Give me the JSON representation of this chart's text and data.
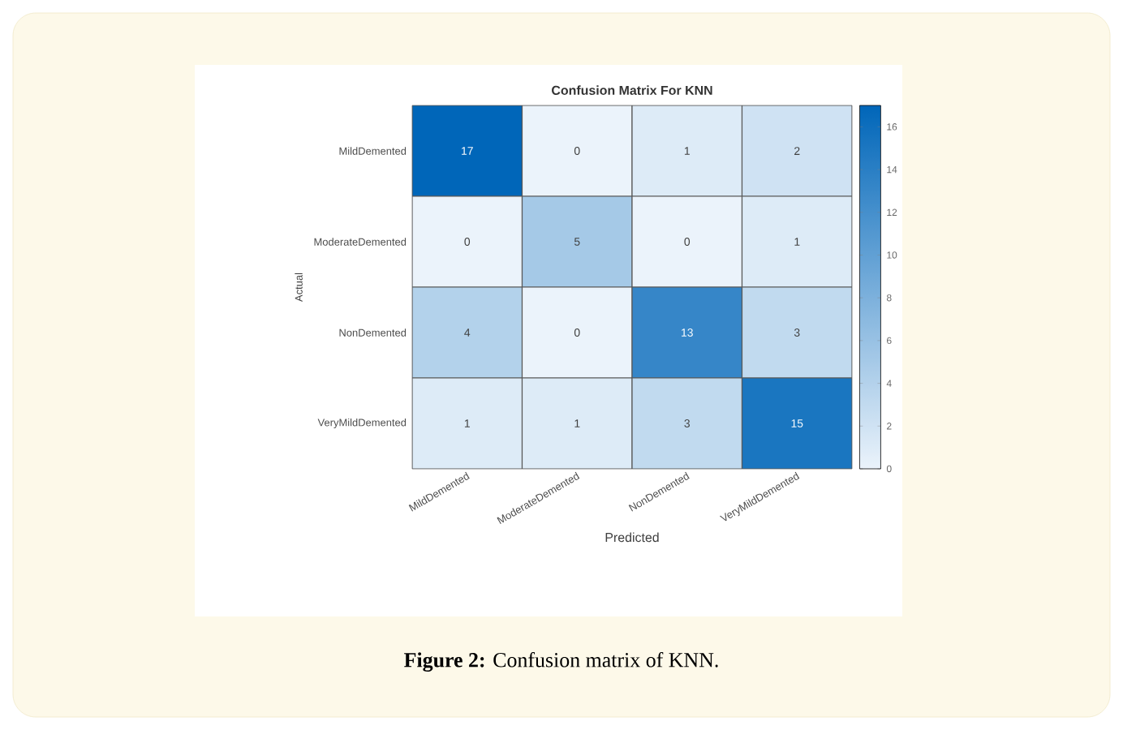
{
  "chart_data": {
    "type": "heatmap",
    "title": "Confusion Matrix For KNN",
    "xlabel": "Predicted",
    "ylabel": "Actual",
    "categories": [
      "MildDemented",
      "ModerateDemented",
      "NonDemented",
      "VeryMildDemented"
    ],
    "y_categories": [
      "MildDemented",
      "ModerateDemented",
      "NonDemented",
      "VeryMildDemented"
    ],
    "cells": [
      [
        17,
        0,
        1,
        2
      ],
      [
        0,
        5,
        0,
        1
      ],
      [
        4,
        0,
        13,
        3
      ],
      [
        1,
        1,
        3,
        15
      ]
    ],
    "clim": [
      0,
      17
    ],
    "cticks": [
      0,
      2,
      4,
      6,
      8,
      10,
      12,
      14,
      16
    ],
    "data_labels": true,
    "annotations": [
      "**Figure 2:** Confusion matrix of KNN."
    ]
  }
}
